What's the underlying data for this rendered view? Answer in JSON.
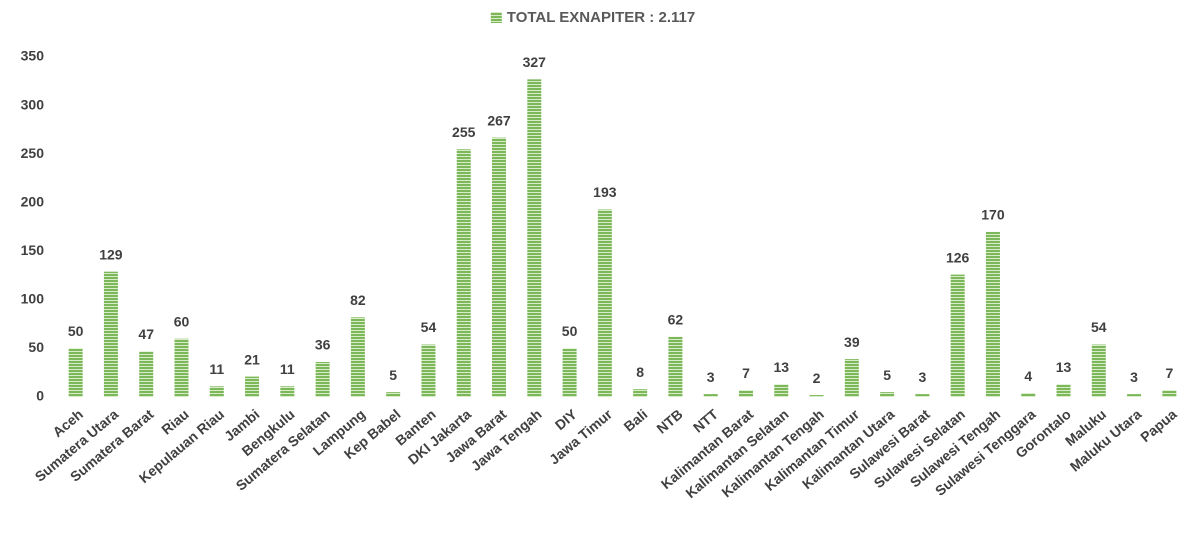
{
  "chart_data": {
    "type": "bar",
    "series": [
      {
        "name": "TOTAL EXNAPITER : 2.117",
        "color": "#7cb85a",
        "values": [
          50,
          129,
          47,
          60,
          11,
          21,
          11,
          36,
          82,
          5,
          54,
          255,
          267,
          327,
          50,
          193,
          8,
          62,
          3,
          7,
          13,
          2,
          39,
          5,
          3,
          126,
          170,
          4,
          13,
          54,
          3,
          7
        ]
      }
    ],
    "categories": [
      "Aceh",
      "Sumatera Utara",
      "Sumatera Barat",
      "Riau",
      "Kepulauan Riau",
      "Jambi",
      "Bengkulu",
      "Sumatera Selatan",
      "Lampung",
      "Kep Babel",
      "Banten",
      "DKI Jakarta",
      "Jawa Barat",
      "Jawa Tengah",
      "DIY",
      "Jawa Timur",
      "Bali",
      "NTB",
      "NTT",
      "Kalimantan Barat",
      "Kalimantan Selatan",
      "Kalimantan Tengah",
      "Kalimantan Timur",
      "Kalimantan Utara",
      "Sulawesi Barat",
      "Sulawesi Selatan",
      "Sulawesi Tengah",
      "Sulawesi Tenggara",
      "Gorontalo",
      "Maluku",
      "Maluku Utara",
      "Papua"
    ],
    "ylim": [
      0,
      350
    ],
    "yticks": [
      0,
      50,
      100,
      150,
      200,
      250,
      300,
      350
    ],
    "legend": "top",
    "grid": false
  }
}
